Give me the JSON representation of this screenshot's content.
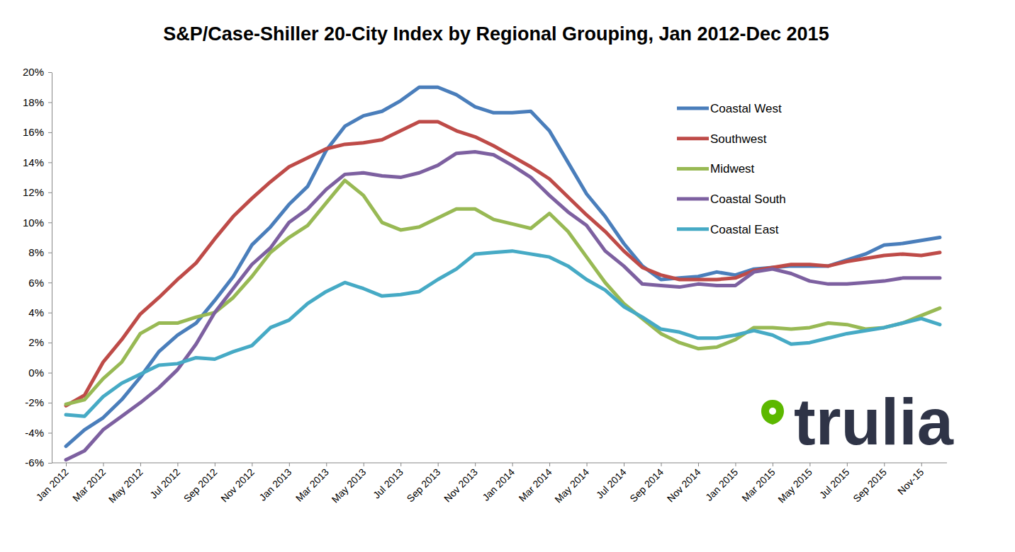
{
  "chart_data": {
    "type": "line",
    "title": "S&P/Case-Shiller 20-City Index by Regional Grouping, Jan 2012-Dec 2015",
    "watermark": "trulia",
    "categories": [
      "Jan 2012",
      null,
      "Mar 2012",
      null,
      "May 2012",
      null,
      "Jul 2012",
      null,
      "Sep 2012",
      null,
      "Nov 2012",
      null,
      "Jan 2013",
      null,
      "Mar 2013",
      null,
      "May 2013",
      null,
      "Jul 2013",
      null,
      "Sep 2013",
      null,
      "Nov 2013",
      null,
      "Jan 2014",
      null,
      "Mar 2014",
      null,
      "May 2014",
      null,
      "Jul 2014",
      null,
      "Sep 2014",
      null,
      "Nov 2014",
      null,
      "Jan 2015",
      null,
      "Mar 2015",
      null,
      "May 2015",
      null,
      "Jul 2015",
      null,
      "Sep 2015",
      null,
      "Nov-15",
      null
    ],
    "series": [
      {
        "name": "Coastal West",
        "color": "#4a7ebb",
        "values": [
          -4.9,
          -3.8,
          -3.0,
          -1.8,
          -0.3,
          1.4,
          2.5,
          3.3,
          4.8,
          6.4,
          8.5,
          9.7,
          11.2,
          12.4,
          14.8,
          16.4,
          17.1,
          17.4,
          18.1,
          19.0,
          19.0,
          18.5,
          17.7,
          17.3,
          17.3,
          17.4,
          16.1,
          14.0,
          11.9,
          10.4,
          8.6,
          7.1,
          6.2,
          6.3,
          6.4,
          6.7,
          6.5,
          6.9,
          7.0,
          7.1,
          7.1,
          7.1,
          7.5,
          7.9,
          8.5,
          8.6,
          8.8,
          9.0
        ]
      },
      {
        "name": "Southwest",
        "color": "#be4b48",
        "values": [
          -2.2,
          -1.5,
          0.7,
          2.2,
          3.9,
          5.0,
          6.2,
          7.3,
          8.9,
          10.4,
          11.6,
          12.7,
          13.7,
          14.3,
          14.9,
          15.2,
          15.3,
          15.5,
          16.1,
          16.7,
          16.7,
          16.1,
          15.7,
          15.1,
          14.4,
          13.7,
          12.9,
          11.7,
          10.5,
          9.4,
          8.1,
          7.0,
          6.5,
          6.2,
          6.2,
          6.2,
          6.3,
          6.8,
          7.0,
          7.2,
          7.2,
          7.1,
          7.4,
          7.6,
          7.8,
          7.9,
          7.8,
          8.0
        ]
      },
      {
        "name": "Midwest",
        "color": "#98b954",
        "values": [
          -2.1,
          -1.8,
          -0.4,
          0.7,
          2.6,
          3.3,
          3.3,
          3.7,
          4.0,
          5.0,
          6.4,
          8.0,
          9.0,
          9.8,
          11.3,
          12.8,
          11.8,
          10.0,
          9.5,
          9.7,
          10.3,
          10.9,
          10.9,
          10.2,
          9.9,
          9.6,
          10.6,
          9.4,
          7.7,
          6.0,
          4.6,
          3.6,
          2.6,
          2.0,
          1.6,
          1.7,
          2.2,
          3.0,
          3.0,
          2.9,
          3.0,
          3.3,
          3.2,
          2.9,
          3.0,
          3.3,
          3.8,
          4.3
        ]
      },
      {
        "name": "Coastal South",
        "color": "#7d60a0",
        "values": [
          -5.8,
          -5.2,
          -3.8,
          -2.9,
          -2.0,
          -1.0,
          0.2,
          1.9,
          4.0,
          5.6,
          7.2,
          8.3,
          10.0,
          10.9,
          12.2,
          13.2,
          13.3,
          13.1,
          13.0,
          13.3,
          13.8,
          14.6,
          14.7,
          14.5,
          13.8,
          13.0,
          11.8,
          10.7,
          9.8,
          8.1,
          7.1,
          5.9,
          5.8,
          5.7,
          5.9,
          5.8,
          5.8,
          6.7,
          6.9,
          6.6,
          6.1,
          5.9,
          5.9,
          6.0,
          6.1,
          6.3,
          6.3,
          6.3
        ]
      },
      {
        "name": "Coastal East",
        "color": "#46aac5",
        "values": [
          -2.8,
          -2.9,
          -1.6,
          -0.7,
          -0.1,
          0.5,
          0.6,
          1.0,
          0.9,
          1.4,
          1.8,
          3.0,
          3.5,
          4.6,
          5.4,
          6.0,
          5.6,
          5.1,
          5.2,
          5.4,
          6.2,
          6.9,
          7.9,
          8.0,
          8.1,
          7.9,
          7.7,
          7.1,
          6.2,
          5.5,
          4.4,
          3.7,
          2.9,
          2.7,
          2.3,
          2.3,
          2.5,
          2.8,
          2.5,
          1.9,
          2.0,
          2.3,
          2.6,
          2.8,
          3.0,
          3.3,
          3.6,
          3.2
        ]
      }
    ],
    "ylim": [
      -6,
      20
    ],
    "yticks": [
      {
        "value": -6,
        "label": "-6%"
      },
      {
        "value": -4,
        "label": "-4%"
      },
      {
        "value": -2,
        "label": "-2%"
      },
      {
        "value": 0,
        "label": "0%"
      },
      {
        "value": 2,
        "label": "2%"
      },
      {
        "value": 4,
        "label": "4%"
      },
      {
        "value": 6,
        "label": "6%"
      },
      {
        "value": 8,
        "label": "8%"
      },
      {
        "value": 10,
        "label": "10%"
      },
      {
        "value": 12,
        "label": "12%"
      },
      {
        "value": 14,
        "label": "14%"
      },
      {
        "value": 16,
        "label": "16%"
      },
      {
        "value": 18,
        "label": "18%"
      },
      {
        "value": 20,
        "label": "20%"
      }
    ],
    "grid": false,
    "legend": "upper right"
  }
}
